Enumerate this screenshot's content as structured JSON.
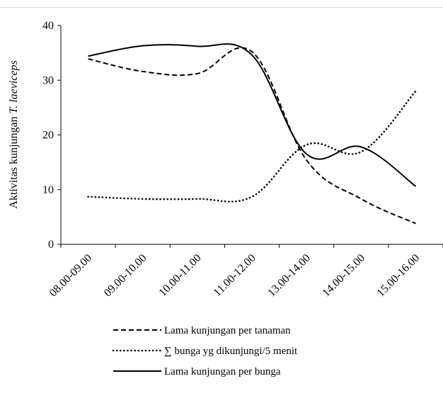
{
  "chart_data": {
    "type": "line",
    "categories": [
      "08.00-09.00",
      "09.00-10.00",
      "10.00-11.00",
      "11.00-12.00",
      "13.00-14.00",
      "14.00-15.00",
      "15.00-16.00"
    ],
    "series": [
      {
        "name": "Lama kunjungan per tanaman",
        "style": "dashed",
        "values": [
          33.9,
          31.6,
          31.2,
          35.2,
          15.4,
          8.3,
          3.8
        ]
      },
      {
        "name": "∑ bunga yg dikunjungi/5 menit",
        "style": "dotted",
        "values": [
          8.7,
          8.3,
          8.3,
          8.7,
          18.2,
          16.9,
          28.0
        ]
      },
      {
        "name": "Lama kunjungan per bunga",
        "style": "solid",
        "values": [
          34.4,
          36.3,
          36.2,
          34.6,
          16.5,
          17.8,
          10.6
        ]
      }
    ],
    "ylabel_prefix": "Aktivitas kunjungan ",
    "ylabel_italic": "T. laeviceps",
    "ylim": [
      0,
      40
    ],
    "yticks": [
      0,
      10,
      20,
      30,
      40
    ],
    "grid": false,
    "legend_position": "bottom",
    "colors": {
      "line": "#000000",
      "axis": "#000000"
    }
  }
}
